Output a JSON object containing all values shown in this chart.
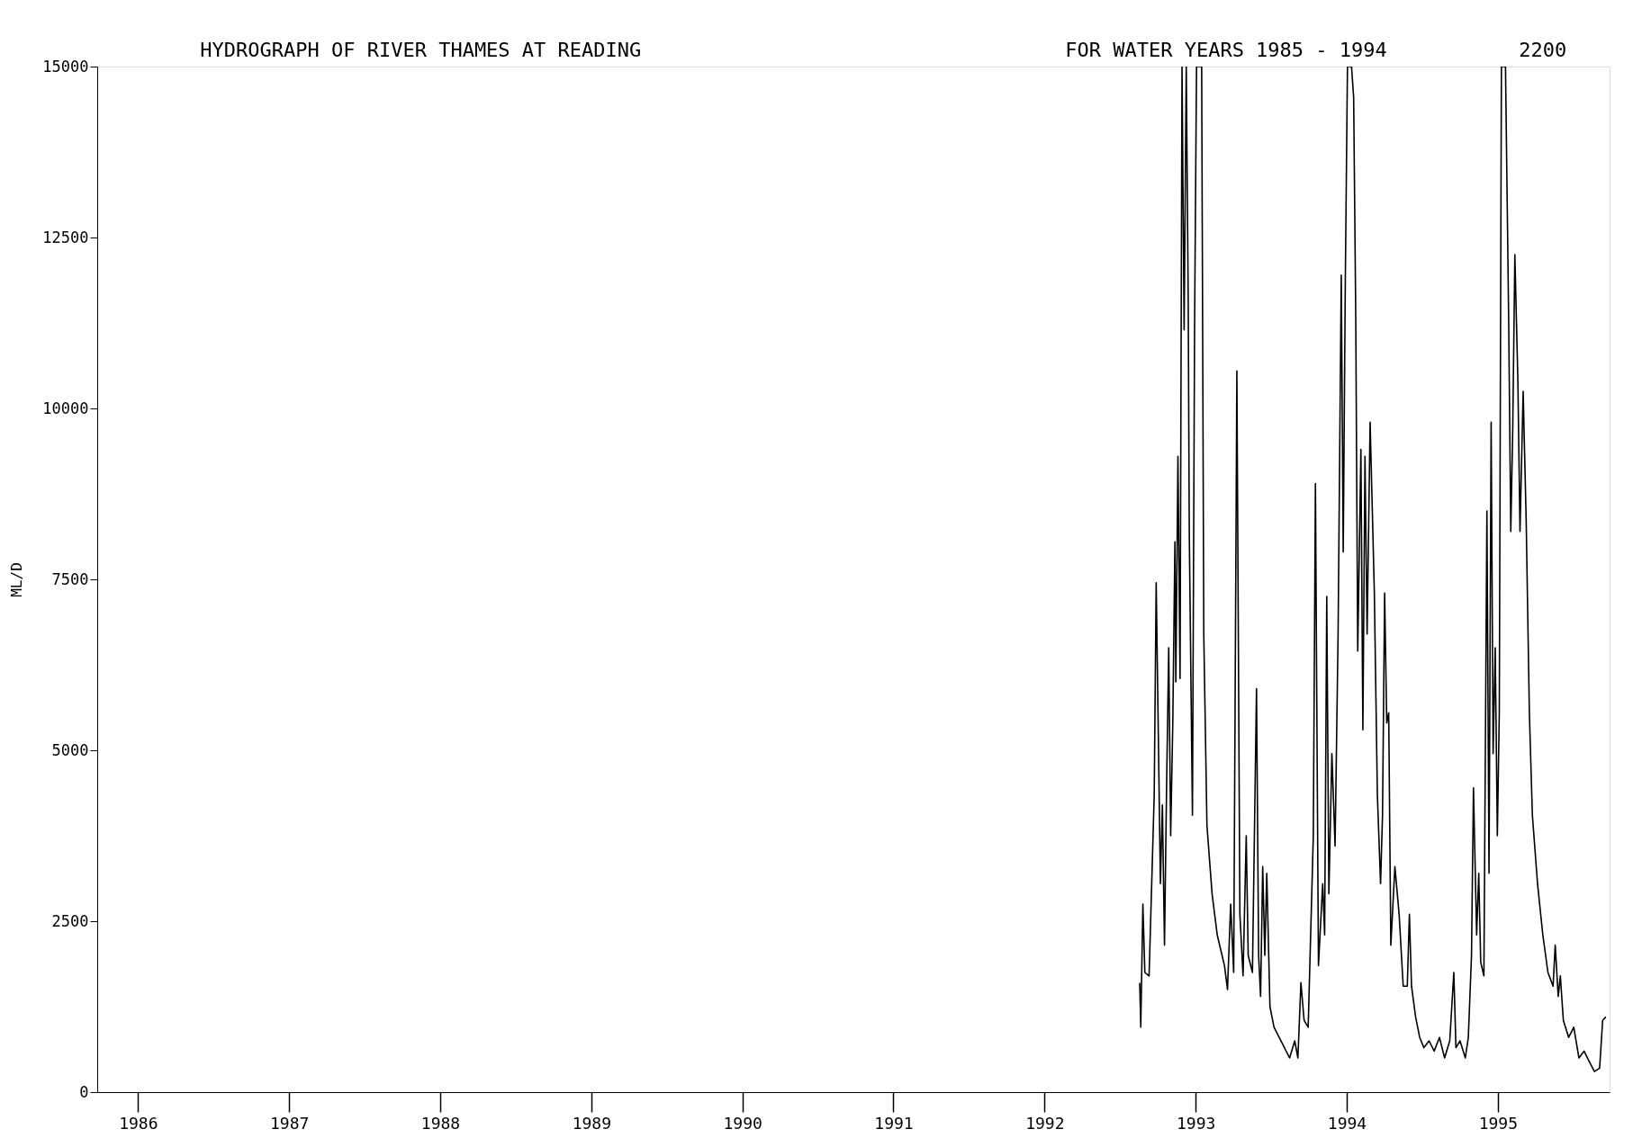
{
  "chart_data": {
    "type": "line",
    "title": "HYDROGRAPH OF  RIVER THAMES AT READING",
    "ylabel": "ML/D",
    "annotations": [
      "FOR WATER YEARS 1985 - 1994",
      "2200"
    ],
    "xlim": [
      1985.73,
      1995.74
    ],
    "xticks": [
      1986,
      1987,
      1988,
      1989,
      1990,
      1991,
      1992,
      1993,
      1994,
      1995
    ],
    "ylim": [
      0,
      15000
    ],
    "yticks": [
      0,
      2500,
      5000,
      7500,
      10000,
      12500,
      15000
    ],
    "grid": false,
    "legend": false,
    "marker": "none",
    "line_style": "solid",
    "series": [
      {
        "color": "#000000",
        "x": [
          1992.63,
          1992.637,
          1992.651,
          1992.664,
          1992.692,
          1992.726,
          1992.739,
          1992.753,
          1992.767,
          1992.78,
          1992.794,
          1992.808,
          1992.822,
          1992.835,
          1992.849,
          1992.863,
          1992.869,
          1992.883,
          1992.897,
          1992.91,
          1992.924,
          1992.938,
          1992.951,
          1992.958,
          1992.979,
          1992.993,
          1993.006,
          1993.027,
          1993.04,
          1993.054,
          1993.075,
          1993.109,
          1993.143,
          1993.191,
          1993.211,
          1993.232,
          1993.252,
          1993.273,
          1993.293,
          1993.314,
          1993.335,
          1993.348,
          1993.376,
          1993.403,
          1993.417,
          1993.43,
          1993.444,
          1993.458,
          1993.471,
          1993.492,
          1993.519,
          1993.553,
          1993.588,
          1993.622,
          1993.656,
          1993.677,
          1993.697,
          1993.718,
          1993.745,
          1993.779,
          1993.793,
          1993.813,
          1993.841,
          1993.854,
          1993.868,
          1993.882,
          1993.902,
          1993.923,
          1993.943,
          1993.964,
          1993.977,
          1993.991,
          1994.005,
          1994.018,
          1994.032,
          1994.046,
          1994.06,
          1994.073,
          1994.094,
          1994.107,
          1994.121,
          1994.135,
          1994.155,
          1994.183,
          1994.203,
          1994.224,
          1994.237,
          1994.251,
          1994.265,
          1994.278,
          1994.292,
          1994.319,
          1994.347,
          1994.374,
          1994.401,
          1994.415,
          1994.429,
          1994.456,
          1994.483,
          1994.511,
          1994.545,
          1994.579,
          1994.614,
          1994.648,
          1994.682,
          1994.709,
          1994.723,
          1994.75,
          1994.785,
          1994.805,
          1994.826,
          1994.839,
          1994.86,
          1994.874,
          1994.887,
          1994.908,
          1994.928,
          1994.942,
          1994.956,
          1994.969,
          1994.983,
          1994.997,
          1995.01,
          1995.024,
          1995.051,
          1995.072,
          1995.086,
          1995.099,
          1995.113,
          1995.133,
          1995.147,
          1995.168,
          1995.188,
          1995.209,
          1995.229,
          1995.263,
          1995.298,
          1995.332,
          1995.366,
          1995.38,
          1995.4,
          1995.414,
          1995.434,
          1995.469,
          1995.503,
          1995.537,
          1995.571,
          1995.605,
          1995.64,
          1995.674,
          1995.694,
          1995.715
        ],
        "values": [
          1600,
          950,
          2750,
          1750,
          1700,
          4350,
          7450,
          5250,
          3050,
          4200,
          2150,
          4500,
          6500,
          3750,
          5400,
          8050,
          6000,
          9300,
          6050,
          15000,
          11150,
          15000,
          11600,
          8200,
          4050,
          11150,
          15000,
          15000,
          15000,
          6700,
          3900,
          2900,
          2300,
          1850,
          1500,
          2750,
          1750,
          10550,
          2600,
          1700,
          3750,
          2000,
          1750,
          5900,
          2000,
          1400,
          3300,
          2000,
          3200,
          1250,
          950,
          800,
          650,
          500,
          750,
          500,
          1600,
          1050,
          950,
          3750,
          8900,
          1850,
          3050,
          2300,
          7250,
          2900,
          4950,
          3600,
          6700,
          11950,
          7900,
          11900,
          15000,
          15000,
          15000,
          14550,
          11300,
          6450,
          9400,
          5300,
          9300,
          6700,
          9800,
          7300,
          4350,
          3050,
          4050,
          7300,
          5400,
          5550,
          2150,
          3300,
          2600,
          1550,
          1550,
          2600,
          1550,
          1100,
          800,
          650,
          750,
          600,
          800,
          500,
          750,
          1750,
          650,
          750,
          500,
          800,
          2000,
          4450,
          2300,
          3200,
          1900,
          1700,
          8500,
          3200,
          9800,
          4950,
          6500,
          3750,
          5550,
          15000,
          15000,
          11300,
          8200,
          9700,
          12250,
          10400,
          8200,
          10250,
          8350,
          5550,
          4050,
          3050,
          2300,
          1750,
          1550,
          2150,
          1400,
          1700,
          1050,
          800,
          950,
          500,
          600,
          450,
          300,
          350,
          1050,
          1100
        ]
      }
    ]
  }
}
